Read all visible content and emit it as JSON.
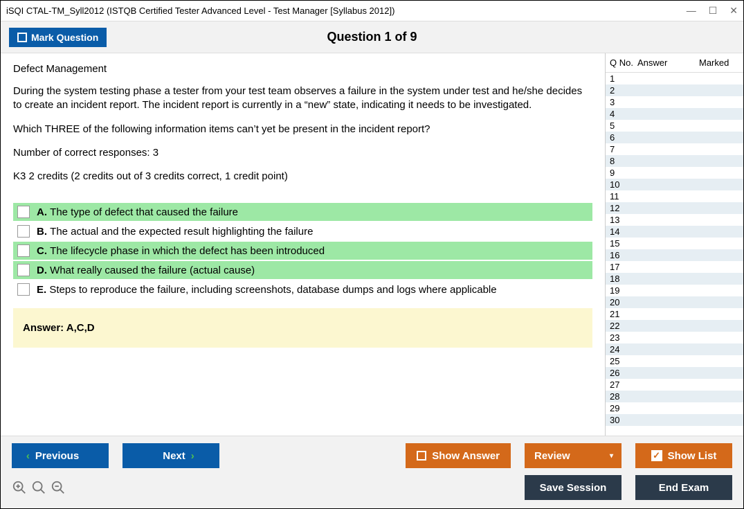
{
  "window": {
    "title": "iSQI CTAL-TM_Syll2012 (ISTQB Certified Tester Advanced Level - Test Manager [Syllabus 2012])"
  },
  "header": {
    "mark_label": "Mark Question",
    "question_title": "Question 1 of 9"
  },
  "question": {
    "topic": "Defect Management",
    "para1": "During the system testing phase a tester from your test team observes a failure in the system under test and he/she decides to create an incident report. The incident report is currently in a “new” state, indicating it needs to be investigated.",
    "para2": "Which THREE of the following information items can’t yet be present in the incident report?",
    "para3": "Number of correct responses: 3",
    "para4": "K3 2 credits (2 credits out of 3 credits correct, 1 credit point)",
    "options": [
      {
        "letter": "A.",
        "text": "The type of defect that caused the failure",
        "correct": true
      },
      {
        "letter": "B.",
        "text": "The actual and the expected result highlighting the failure",
        "correct": false
      },
      {
        "letter": "C.",
        "text": "The lifecycle phase in which the defect has been introduced",
        "correct": true
      },
      {
        "letter": "D.",
        "text": "What really caused the failure (actual cause)",
        "correct": true
      },
      {
        "letter": "E.",
        "text": "Steps to reproduce the failure, including screenshots, database dumps and logs where applicable",
        "correct": false
      }
    ],
    "answer_label": "Answer: A,C,D"
  },
  "side": {
    "col_qno": "Q No.",
    "col_answer": "Answer",
    "col_marked": "Marked",
    "row_count": 30
  },
  "footer": {
    "previous": "Previous",
    "next": "Next",
    "show_answer": "Show Answer",
    "review": "Review",
    "show_list": "Show List",
    "save_session": "Save Session",
    "end_exam": "End Exam"
  },
  "colors": {
    "blue": "#0a5ca8",
    "orange": "#d4691a",
    "dark": "#2b3a4a",
    "correct_bg": "#9de8a5",
    "answer_bg": "#fcf7d0",
    "stripe": "#e6eef3"
  }
}
